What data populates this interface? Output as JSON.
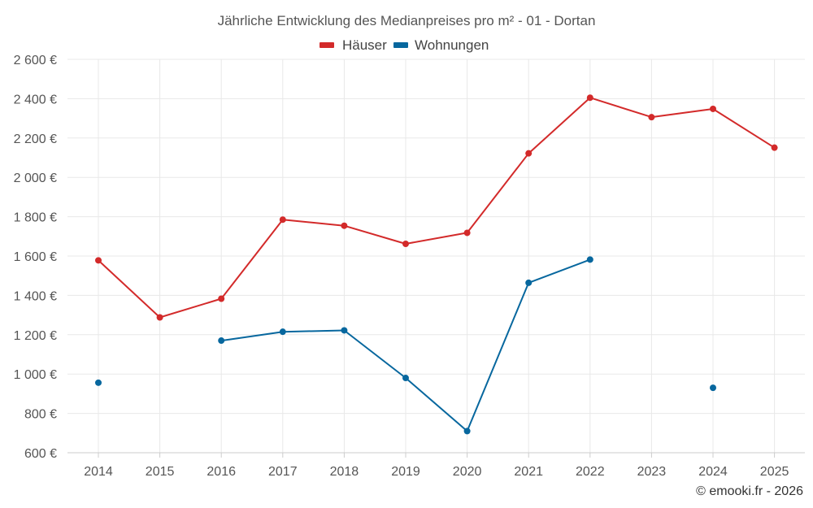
{
  "chart_data": {
    "type": "line",
    "title": "Jährliche Entwicklung des Medianpreises pro m² - 01 - Dortan",
    "categories": [
      "2014",
      "2015",
      "2016",
      "2017",
      "2018",
      "2019",
      "2020",
      "2021",
      "2022",
      "2023",
      "2024",
      "2025"
    ],
    "y_ticks": [
      600,
      800,
      1000,
      1200,
      1400,
      1600,
      1800,
      2000,
      2200,
      2400,
      2600
    ],
    "ylim": [
      600,
      2600
    ],
    "y_unit": "€",
    "grid": true,
    "legend_position": "top-center",
    "series": [
      {
        "name": "Häuser",
        "color": "#d32a2a",
        "values": [
          1578,
          1288,
          1383,
          1785,
          1754,
          1662,
          1718,
          2122,
          2405,
          2306,
          2348,
          2151
        ]
      },
      {
        "name": "Wohnungen",
        "color": "#07679e",
        "values": [
          956,
          null,
          1170,
          1215,
          1222,
          980,
          710,
          1464,
          1582,
          null,
          930,
          null
        ]
      }
    ]
  },
  "credit": "© emooki.fr - 2026"
}
